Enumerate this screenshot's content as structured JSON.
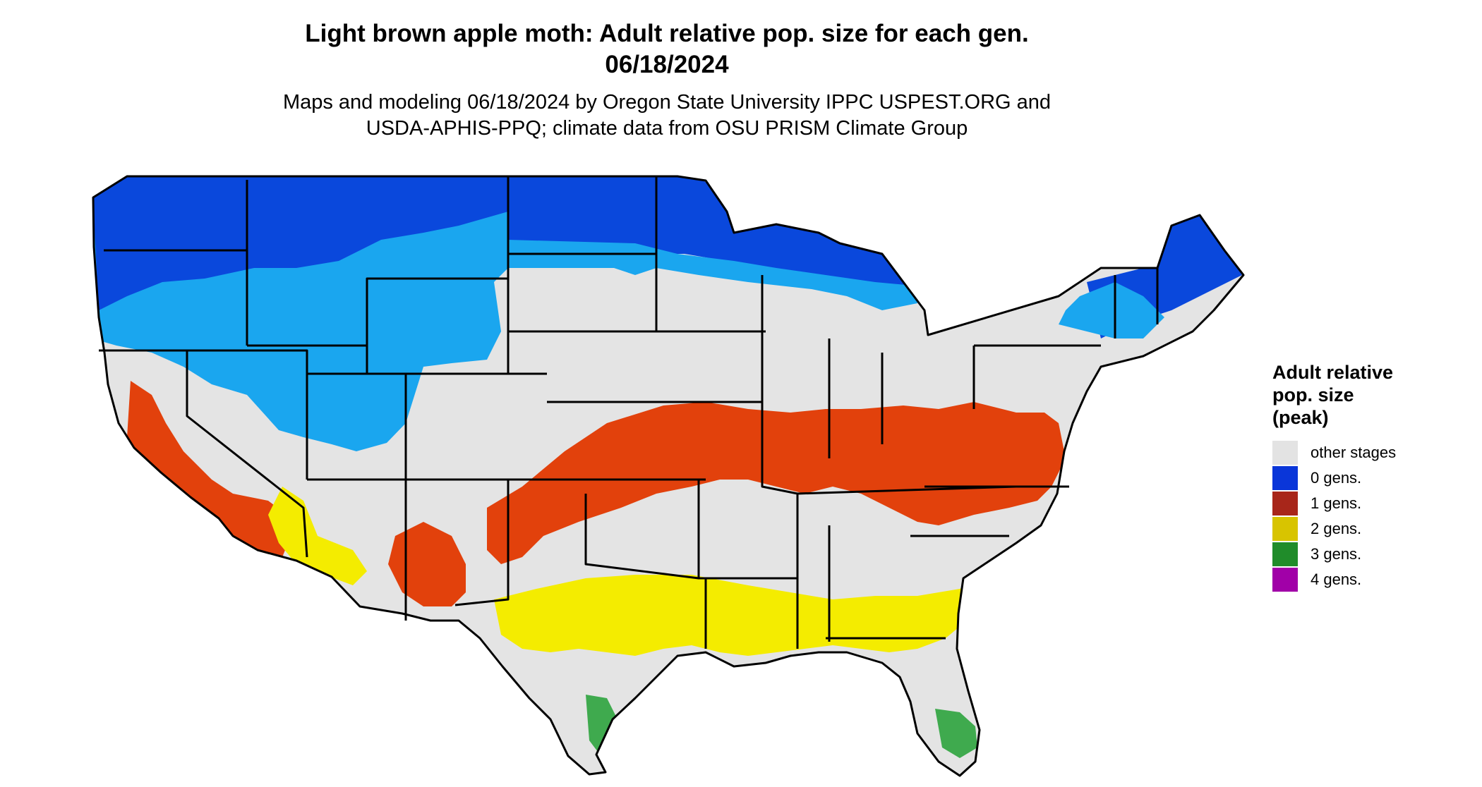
{
  "header": {
    "title_line1": "Light brown apple moth: Adult relative pop. size for each gen.",
    "title_line2": "06/18/2024",
    "subtitle_line1": "Maps and modeling 06/18/2024 by Oregon State University IPPC USPEST.ORG and",
    "subtitle_line2": "USDA-APHIS-PPQ; climate data from OSU PRISM Climate Group"
  },
  "legend": {
    "title_line1": "Adult relative",
    "title_line2": "pop. size",
    "title_line3": "(peak)",
    "items": [
      {
        "label": "other stages",
        "color": "#e3e3e3"
      },
      {
        "label": "0 gens.",
        "color": "#0a36d9"
      },
      {
        "label": "1 gens.",
        "color": "#a8261a"
      },
      {
        "label": "2 gens.",
        "color": "#d8c400"
      },
      {
        "label": "3 gens.",
        "color": "#208c2a"
      },
      {
        "label": "4 gens.",
        "color": "#a100a8"
      }
    ]
  },
  "map_colors": {
    "land": "#e4e4e4",
    "blue_dark": "#0a48dc",
    "blue_light": "#1aa6ef",
    "red": "#e2410c",
    "yellow": "#f4ec00",
    "green": "#3faa4e",
    "border": "#000000"
  }
}
